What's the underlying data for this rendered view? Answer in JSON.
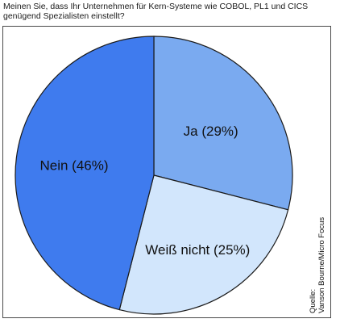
{
  "question": {
    "line1": "Meinen Sie, dass Ihr Unternehmen für Kern-Systeme wie COBOL, PL1 und CICS",
    "line2": "genügend Spezialisten einstellt?"
  },
  "chart_data": {
    "type": "pie",
    "slices": [
      {
        "label": "Ja (29%)",
        "value": 29,
        "color": "#7aaaf0"
      },
      {
        "label": "Weiß nicht (25%)",
        "value": 25,
        "color": "#d2e6fc"
      },
      {
        "label": "Nein (46%)",
        "value": 46,
        "color": "#3f7bee"
      }
    ],
    "start": "12 o'clock",
    "direction": "clockwise",
    "stroke_color": "#1a1a1a"
  },
  "source": {
    "line1": "Quelle:",
    "line2": "Vanson Bourne/Micro Focus"
  }
}
